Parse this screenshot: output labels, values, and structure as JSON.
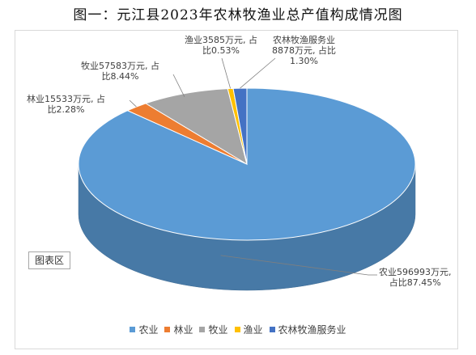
{
  "title": "图一：元江县2023年农林牧渔业总产值构成情况图",
  "plot_area_label": "图表区",
  "chart_data": {
    "type": "pie",
    "title": "图一：元江县2023年农林牧渔业总产值构成情况图",
    "unit": "万元",
    "series": [
      {
        "name": "农业",
        "value": 596993,
        "percent": 87.45,
        "color": "#5B9BD5",
        "label_line1": "农业596993万元,",
        "label_line2": "占比87.45%"
      },
      {
        "name": "林业",
        "value": 15533,
        "percent": 2.28,
        "color": "#ED7D31",
        "label_line1": "林业15533万元, 占",
        "label_line2": "比2.28%"
      },
      {
        "name": "牧业",
        "value": 57583,
        "percent": 8.44,
        "color": "#A5A5A5",
        "label_line1": "牧业57583万元, 占",
        "label_line2": "比8.44%"
      },
      {
        "name": "渔业",
        "value": 3585,
        "percent": 0.53,
        "color": "#FFC000",
        "label_line1": "渔业3585万元, 占",
        "label_line2": "比0.53%"
      },
      {
        "name": "农林牧渔服务业",
        "value": 8878,
        "percent": 1.3,
        "color": "#4472C4",
        "label_line1": "农林牧渔服务业",
        "label_line2": "8878万元, 占比",
        "label_line3": "1.30%"
      }
    ],
    "legend_position": "bottom",
    "style": "3d-pie"
  }
}
